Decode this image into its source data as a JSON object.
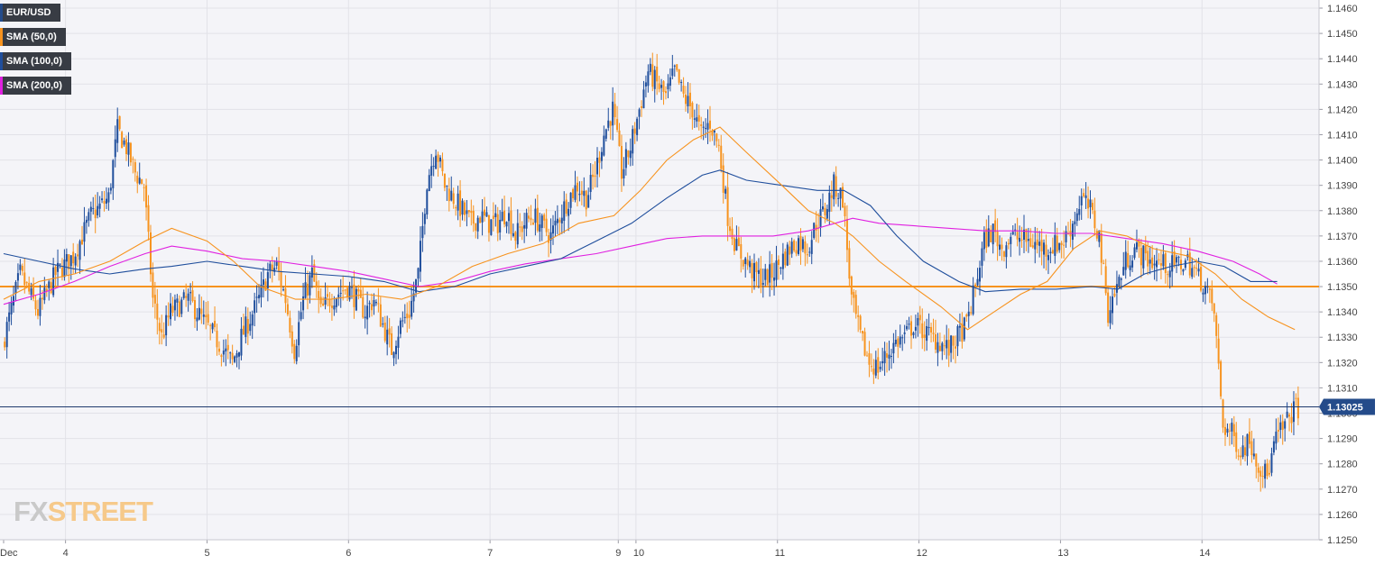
{
  "chart_data": {
    "type": "candlestick",
    "symbol": "EUR/USD",
    "legend": [
      {
        "label": "EUR/USD",
        "color": "#244b8a"
      },
      {
        "label": "SMA (50,0)",
        "color": "#f7931e"
      },
      {
        "label": "SMA (100,0)",
        "color": "#1f4e9c"
      },
      {
        "label": "SMA (200,0)",
        "color": "#e020e0"
      }
    ],
    "y_range": [
      1.125,
      1.146
    ],
    "y_ticks": [
      "1.1460",
      "1.1450",
      "1.1440",
      "1.1430",
      "1.1420",
      "1.1410",
      "1.1400",
      "1.1390",
      "1.1380",
      "1.1370",
      "1.1360",
      "1.1350",
      "1.1340",
      "1.1330",
      "1.1320",
      "1.1310",
      "1.1300",
      "1.1290",
      "1.1280",
      "1.1270",
      "1.1260",
      "1.1250"
    ],
    "x_labels": [
      {
        "label": "Dec",
        "t": 0.0
      },
      {
        "label": "4",
        "t": 7.0
      },
      {
        "label": "5",
        "t": 23.0
      },
      {
        "label": "6",
        "t": 39.0
      },
      {
        "label": "7",
        "t": 55.0
      },
      {
        "label": "9",
        "t": 69.5
      },
      {
        "label": "10",
        "t": 71.5
      },
      {
        "label": "11",
        "t": 87.5
      },
      {
        "label": "12",
        "t": 103.5
      },
      {
        "label": "13",
        "t": 119.5
      },
      {
        "label": "14",
        "t": 135.5
      }
    ],
    "t_range": [
      0,
      147
    ],
    "current_price": "1.13025",
    "horizontal_level": 1.135,
    "candle_colors": {
      "up": "#1f4e9c",
      "down": "#f7931e"
    },
    "close_path": [
      [
        0,
        1.1327
      ],
      [
        2,
        1.1355
      ],
      [
        4,
        1.134
      ],
      [
        6,
        1.1355
      ],
      [
        8,
        1.1362
      ],
      [
        10,
        1.1378
      ],
      [
        12,
        1.1385
      ],
      [
        13,
        1.1412
      ],
      [
        14,
        1.1405
      ],
      [
        15,
        1.1395
      ],
      [
        16,
        1.139
      ],
      [
        17,
        1.1345
      ],
      [
        18,
        1.133
      ],
      [
        19,
        1.134
      ],
      [
        21,
        1.1345
      ],
      [
        23,
        1.1335
      ],
      [
        24,
        1.133
      ],
      [
        25,
        1.1325
      ],
      [
        26,
        1.132
      ],
      [
        27,
        1.133
      ],
      [
        29,
        1.1345
      ],
      [
        30,
        1.1355
      ],
      [
        31,
        1.1358
      ],
      [
        32,
        1.1345
      ],
      [
        33,
        1.1325
      ],
      [
        34,
        1.1345
      ],
      [
        35,
        1.1355
      ],
      [
        36,
        1.134
      ],
      [
        37,
        1.1345
      ],
      [
        39,
        1.135
      ],
      [
        40,
        1.1345
      ],
      [
        41,
        1.134
      ],
      [
        42,
        1.1345
      ],
      [
        43,
        1.1335
      ],
      [
        44,
        1.1325
      ],
      [
        45,
        1.1335
      ],
      [
        46,
        1.134
      ],
      [
        47,
        1.1355
      ],
      [
        48,
        1.1392
      ],
      [
        49,
        1.1405
      ],
      [
        50,
        1.139
      ],
      [
        51,
        1.1385
      ],
      [
        52,
        1.138
      ],
      [
        53,
        1.1375
      ],
      [
        54,
        1.1378
      ],
      [
        55,
        1.1375
      ],
      [
        56,
        1.1375
      ],
      [
        57,
        1.138
      ],
      [
        58,
        1.137
      ],
      [
        59,
        1.1375
      ],
      [
        60,
        1.1378
      ],
      [
        62,
        1.137
      ],
      [
        63,
        1.1378
      ],
      [
        64,
        1.1385
      ],
      [
        65,
        1.139
      ],
      [
        66,
        1.1385
      ],
      [
        67,
        1.1395
      ],
      [
        68,
        1.141
      ],
      [
        69,
        1.142
      ],
      [
        70,
        1.1395
      ],
      [
        71,
        1.1405
      ],
      [
        72,
        1.142
      ],
      [
        73,
        1.1435
      ],
      [
        74,
        1.143
      ],
      [
        75,
        1.1425
      ],
      [
        76,
        1.1435
      ],
      [
        77,
        1.1425
      ],
      [
        78,
        1.142
      ],
      [
        79,
        1.141
      ],
      [
        80,
        1.1415
      ],
      [
        81,
        1.1405
      ],
      [
        82,
        1.1378
      ],
      [
        83,
        1.1365
      ],
      [
        84,
        1.136
      ],
      [
        85,
        1.1355
      ],
      [
        86,
        1.1353
      ],
      [
        87,
        1.1355
      ],
      [
        88,
        1.136
      ],
      [
        89,
        1.1365
      ],
      [
        90,
        1.1368
      ],
      [
        91,
        1.1365
      ],
      [
        92,
        1.1375
      ],
      [
        93,
        1.138
      ],
      [
        94,
        1.139
      ],
      [
        95,
        1.1385
      ],
      [
        96,
        1.1345
      ],
      [
        97,
        1.133
      ],
      [
        98,
        1.132
      ],
      [
        99,
        1.1318
      ],
      [
        100,
        1.1323
      ],
      [
        101,
        1.1328
      ],
      [
        102,
        1.133
      ],
      [
        103,
        1.1335
      ],
      [
        104,
        1.1333
      ],
      [
        105,
        1.133
      ],
      [
        106,
        1.1328
      ],
      [
        107,
        1.1325
      ],
      [
        108,
        1.133
      ],
      [
        109,
        1.1335
      ],
      [
        110,
        1.135
      ],
      [
        111,
        1.1368
      ],
      [
        112,
        1.1372
      ],
      [
        113,
        1.1365
      ],
      [
        114,
        1.137
      ],
      [
        116,
        1.1368
      ],
      [
        118,
        1.1365
      ],
      [
        120,
        1.1368
      ],
      [
        121,
        1.1375
      ],
      [
        122,
        1.1385
      ],
      [
        123,
        1.138
      ],
      [
        124,
        1.137
      ],
      [
        125,
        1.134
      ],
      [
        126,
        1.135
      ],
      [
        127,
        1.136
      ],
      [
        128,
        1.1365
      ],
      [
        129,
        1.1362
      ],
      [
        130,
        1.136
      ],
      [
        132,
        1.1358
      ],
      [
        134,
        1.136
      ],
      [
        135,
        1.1355
      ],
      [
        136,
        1.135
      ],
      [
        137,
        1.134
      ],
      [
        138,
        1.1295
      ],
      [
        139,
        1.1292
      ],
      [
        140,
        1.1285
      ],
      [
        141,
        1.129
      ],
      [
        142,
        1.128
      ],
      [
        143,
        1.1275
      ],
      [
        144,
        1.129
      ],
      [
        145,
        1.1295
      ],
      [
        146,
        1.1302
      ]
    ],
    "sma50": [
      [
        0,
        1.1345
      ],
      [
        4,
        1.1352
      ],
      [
        8,
        1.1355
      ],
      [
        12,
        1.136
      ],
      [
        16,
        1.1368
      ],
      [
        19,
        1.1373
      ],
      [
        23,
        1.1368
      ],
      [
        26,
        1.136
      ],
      [
        29,
        1.135
      ],
      [
        33,
        1.1345
      ],
      [
        37,
        1.1345
      ],
      [
        41,
        1.1347
      ],
      [
        45,
        1.1345
      ],
      [
        49,
        1.135
      ],
      [
        53,
        1.1358
      ],
      [
        57,
        1.1363
      ],
      [
        61,
        1.1367
      ],
      [
        65,
        1.1375
      ],
      [
        69,
        1.1378
      ],
      [
        72,
        1.1388
      ],
      [
        75,
        1.14
      ],
      [
        78,
        1.1408
      ],
      [
        81,
        1.1413
      ],
      [
        84,
        1.1403
      ],
      [
        88,
        1.139
      ],
      [
        91,
        1.138
      ],
      [
        94,
        1.1375
      ],
      [
        96,
        1.137
      ],
      [
        99,
        1.136
      ],
      [
        102,
        1.1352
      ],
      [
        106,
        1.1342
      ],
      [
        109,
        1.1333
      ],
      [
        112,
        1.134
      ],
      [
        115,
        1.1347
      ],
      [
        118,
        1.1352
      ],
      [
        121,
        1.1365
      ],
      [
        124,
        1.1372
      ],
      [
        127,
        1.137
      ],
      [
        130,
        1.1365
      ],
      [
        134,
        1.1362
      ],
      [
        137,
        1.1355
      ],
      [
        140,
        1.1345
      ],
      [
        143,
        1.1338
      ],
      [
        146,
        1.1333
      ]
    ],
    "sma100": [
      [
        0,
        1.1363
      ],
      [
        4,
        1.136
      ],
      [
        8,
        1.1357
      ],
      [
        12,
        1.1355
      ],
      [
        16,
        1.1357
      ],
      [
        19,
        1.1358
      ],
      [
        23,
        1.136
      ],
      [
        27,
        1.1358
      ],
      [
        31,
        1.1356
      ],
      [
        35,
        1.1355
      ],
      [
        39,
        1.1354
      ],
      [
        43,
        1.1352
      ],
      [
        47,
        1.1348
      ],
      [
        51,
        1.135
      ],
      [
        55,
        1.1355
      ],
      [
        59,
        1.1358
      ],
      [
        63,
        1.1361
      ],
      [
        67,
        1.1368
      ],
      [
        71,
        1.1375
      ],
      [
        75,
        1.1385
      ],
      [
        79,
        1.1394
      ],
      [
        81,
        1.1396
      ],
      [
        84,
        1.1392
      ],
      [
        88,
        1.139
      ],
      [
        92,
        1.1388
      ],
      [
        95,
        1.1388
      ],
      [
        98,
        1.1382
      ],
      [
        101,
        1.137
      ],
      [
        104,
        1.136
      ],
      [
        108,
        1.1352
      ],
      [
        111,
        1.1348
      ],
      [
        115,
        1.1349
      ],
      [
        119,
        1.1349
      ],
      [
        123,
        1.135
      ],
      [
        126,
        1.1349
      ],
      [
        129,
        1.1355
      ],
      [
        132,
        1.1358
      ],
      [
        135,
        1.136
      ],
      [
        138,
        1.1358
      ],
      [
        141,
        1.1352
      ],
      [
        144,
        1.1352
      ]
    ],
    "sma200": [
      [
        0,
        1.1343
      ],
      [
        4,
        1.1347
      ],
      [
        8,
        1.1352
      ],
      [
        12,
        1.1358
      ],
      [
        16,
        1.1363
      ],
      [
        19,
        1.1366
      ],
      [
        23,
        1.1364
      ],
      [
        27,
        1.1361
      ],
      [
        31,
        1.136
      ],
      [
        35,
        1.1358
      ],
      [
        39,
        1.1356
      ],
      [
        43,
        1.1353
      ],
      [
        47,
        1.135
      ],
      [
        51,
        1.1352
      ],
      [
        55,
        1.1356
      ],
      [
        59,
        1.1359
      ],
      [
        63,
        1.1361
      ],
      [
        67,
        1.1363
      ],
      [
        71,
        1.1366
      ],
      [
        75,
        1.1369
      ],
      [
        79,
        1.137
      ],
      [
        83,
        1.137
      ],
      [
        87,
        1.137
      ],
      [
        91,
        1.1372
      ],
      [
        94,
        1.1375
      ],
      [
        96,
        1.1377
      ],
      [
        99,
        1.1375
      ],
      [
        103,
        1.1374
      ],
      [
        107,
        1.1373
      ],
      [
        111,
        1.1372
      ],
      [
        115,
        1.1372
      ],
      [
        119,
        1.1371
      ],
      [
        123,
        1.1371
      ],
      [
        127,
        1.1369
      ],
      [
        131,
        1.1367
      ],
      [
        135,
        1.1364
      ],
      [
        139,
        1.136
      ],
      [
        142,
        1.1355
      ],
      [
        144,
        1.1351
      ]
    ]
  },
  "watermark": {
    "fx": "FX",
    "street": "STREET"
  },
  "colors": {
    "grid": "#e2e2e8",
    "axis": "#c8c8d0",
    "level": "#f7931e",
    "current_line": "#1f3a6e",
    "label_bg": "#244b8a"
  }
}
